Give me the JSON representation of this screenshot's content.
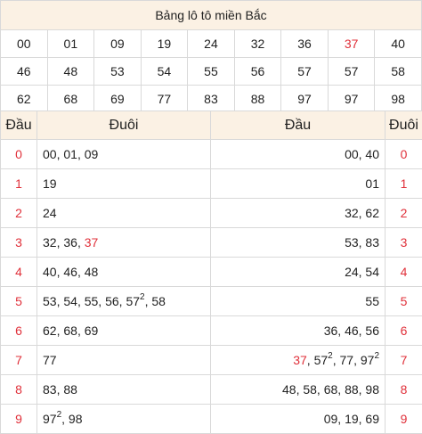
{
  "title": "Bảng lô tô miền Bắc",
  "accent_color": "#e0303a",
  "header_bg": "#fbf1e4",
  "numbers": [
    [
      {
        "v": "00"
      },
      {
        "v": "01"
      },
      {
        "v": "09"
      },
      {
        "v": "19"
      },
      {
        "v": "24"
      },
      {
        "v": "32"
      },
      {
        "v": "36"
      },
      {
        "v": "37",
        "red": true
      },
      {
        "v": "40"
      }
    ],
    [
      {
        "v": "46"
      },
      {
        "v": "48"
      },
      {
        "v": "53"
      },
      {
        "v": "54"
      },
      {
        "v": "55"
      },
      {
        "v": "56"
      },
      {
        "v": "57"
      },
      {
        "v": "57"
      },
      {
        "v": "58"
      }
    ],
    [
      {
        "v": "62"
      },
      {
        "v": "68"
      },
      {
        "v": "69"
      },
      {
        "v": "77"
      },
      {
        "v": "83"
      },
      {
        "v": "88"
      },
      {
        "v": "97"
      },
      {
        "v": "97"
      },
      {
        "v": "98"
      }
    ]
  ],
  "headers": {
    "dau_left": "Đầu",
    "duoi_left": "Đuôi",
    "dau_right": "Đầu",
    "duoi_right": "Đuôi"
  },
  "rows": [
    {
      "dau": "0",
      "left": [
        {
          "t": "00"
        },
        {
          "t": "01"
        },
        {
          "t": "09"
        }
      ],
      "right": [
        {
          "t": "00"
        },
        {
          "t": "40"
        }
      ]
    },
    {
      "dau": "1",
      "left": [
        {
          "t": "19"
        }
      ],
      "right": [
        {
          "t": "01"
        }
      ]
    },
    {
      "dau": "2",
      "left": [
        {
          "t": "24"
        }
      ],
      "right": [
        {
          "t": "32"
        },
        {
          "t": "62"
        }
      ]
    },
    {
      "dau": "3",
      "left": [
        {
          "t": "32"
        },
        {
          "t": "36"
        },
        {
          "t": "37",
          "red": true
        }
      ],
      "right": [
        {
          "t": "53"
        },
        {
          "t": "83"
        }
      ]
    },
    {
      "dau": "4",
      "left": [
        {
          "t": "40"
        },
        {
          "t": "46"
        },
        {
          "t": "48"
        }
      ],
      "right": [
        {
          "t": "24"
        },
        {
          "t": "54"
        }
      ]
    },
    {
      "dau": "5",
      "left": [
        {
          "t": "53"
        },
        {
          "t": "54"
        },
        {
          "t": "55"
        },
        {
          "t": "56"
        },
        {
          "t": "57",
          "sup": "2"
        },
        {
          "t": "58"
        }
      ],
      "right": [
        {
          "t": "55"
        }
      ]
    },
    {
      "dau": "6",
      "left": [
        {
          "t": "62"
        },
        {
          "t": "68"
        },
        {
          "t": "69"
        }
      ],
      "right": [
        {
          "t": "36"
        },
        {
          "t": "46"
        },
        {
          "t": "56"
        }
      ]
    },
    {
      "dau": "7",
      "left": [
        {
          "t": "77"
        }
      ],
      "right": [
        {
          "t": "37",
          "red": true
        },
        {
          "t": "57",
          "sup": "2"
        },
        {
          "t": "77"
        },
        {
          "t": "97",
          "sup": "2"
        }
      ]
    },
    {
      "dau": "8",
      "left": [
        {
          "t": "83"
        },
        {
          "t": "88"
        }
      ],
      "right": [
        {
          "t": "48"
        },
        {
          "t": "58"
        },
        {
          "t": "68"
        },
        {
          "t": "88"
        },
        {
          "t": "98"
        }
      ]
    },
    {
      "dau": "9",
      "left": [
        {
          "t": "97",
          "sup": "2"
        },
        {
          "t": "98"
        }
      ],
      "right": [
        {
          "t": "09"
        },
        {
          "t": "19"
        },
        {
          "t": "69"
        }
      ]
    }
  ]
}
